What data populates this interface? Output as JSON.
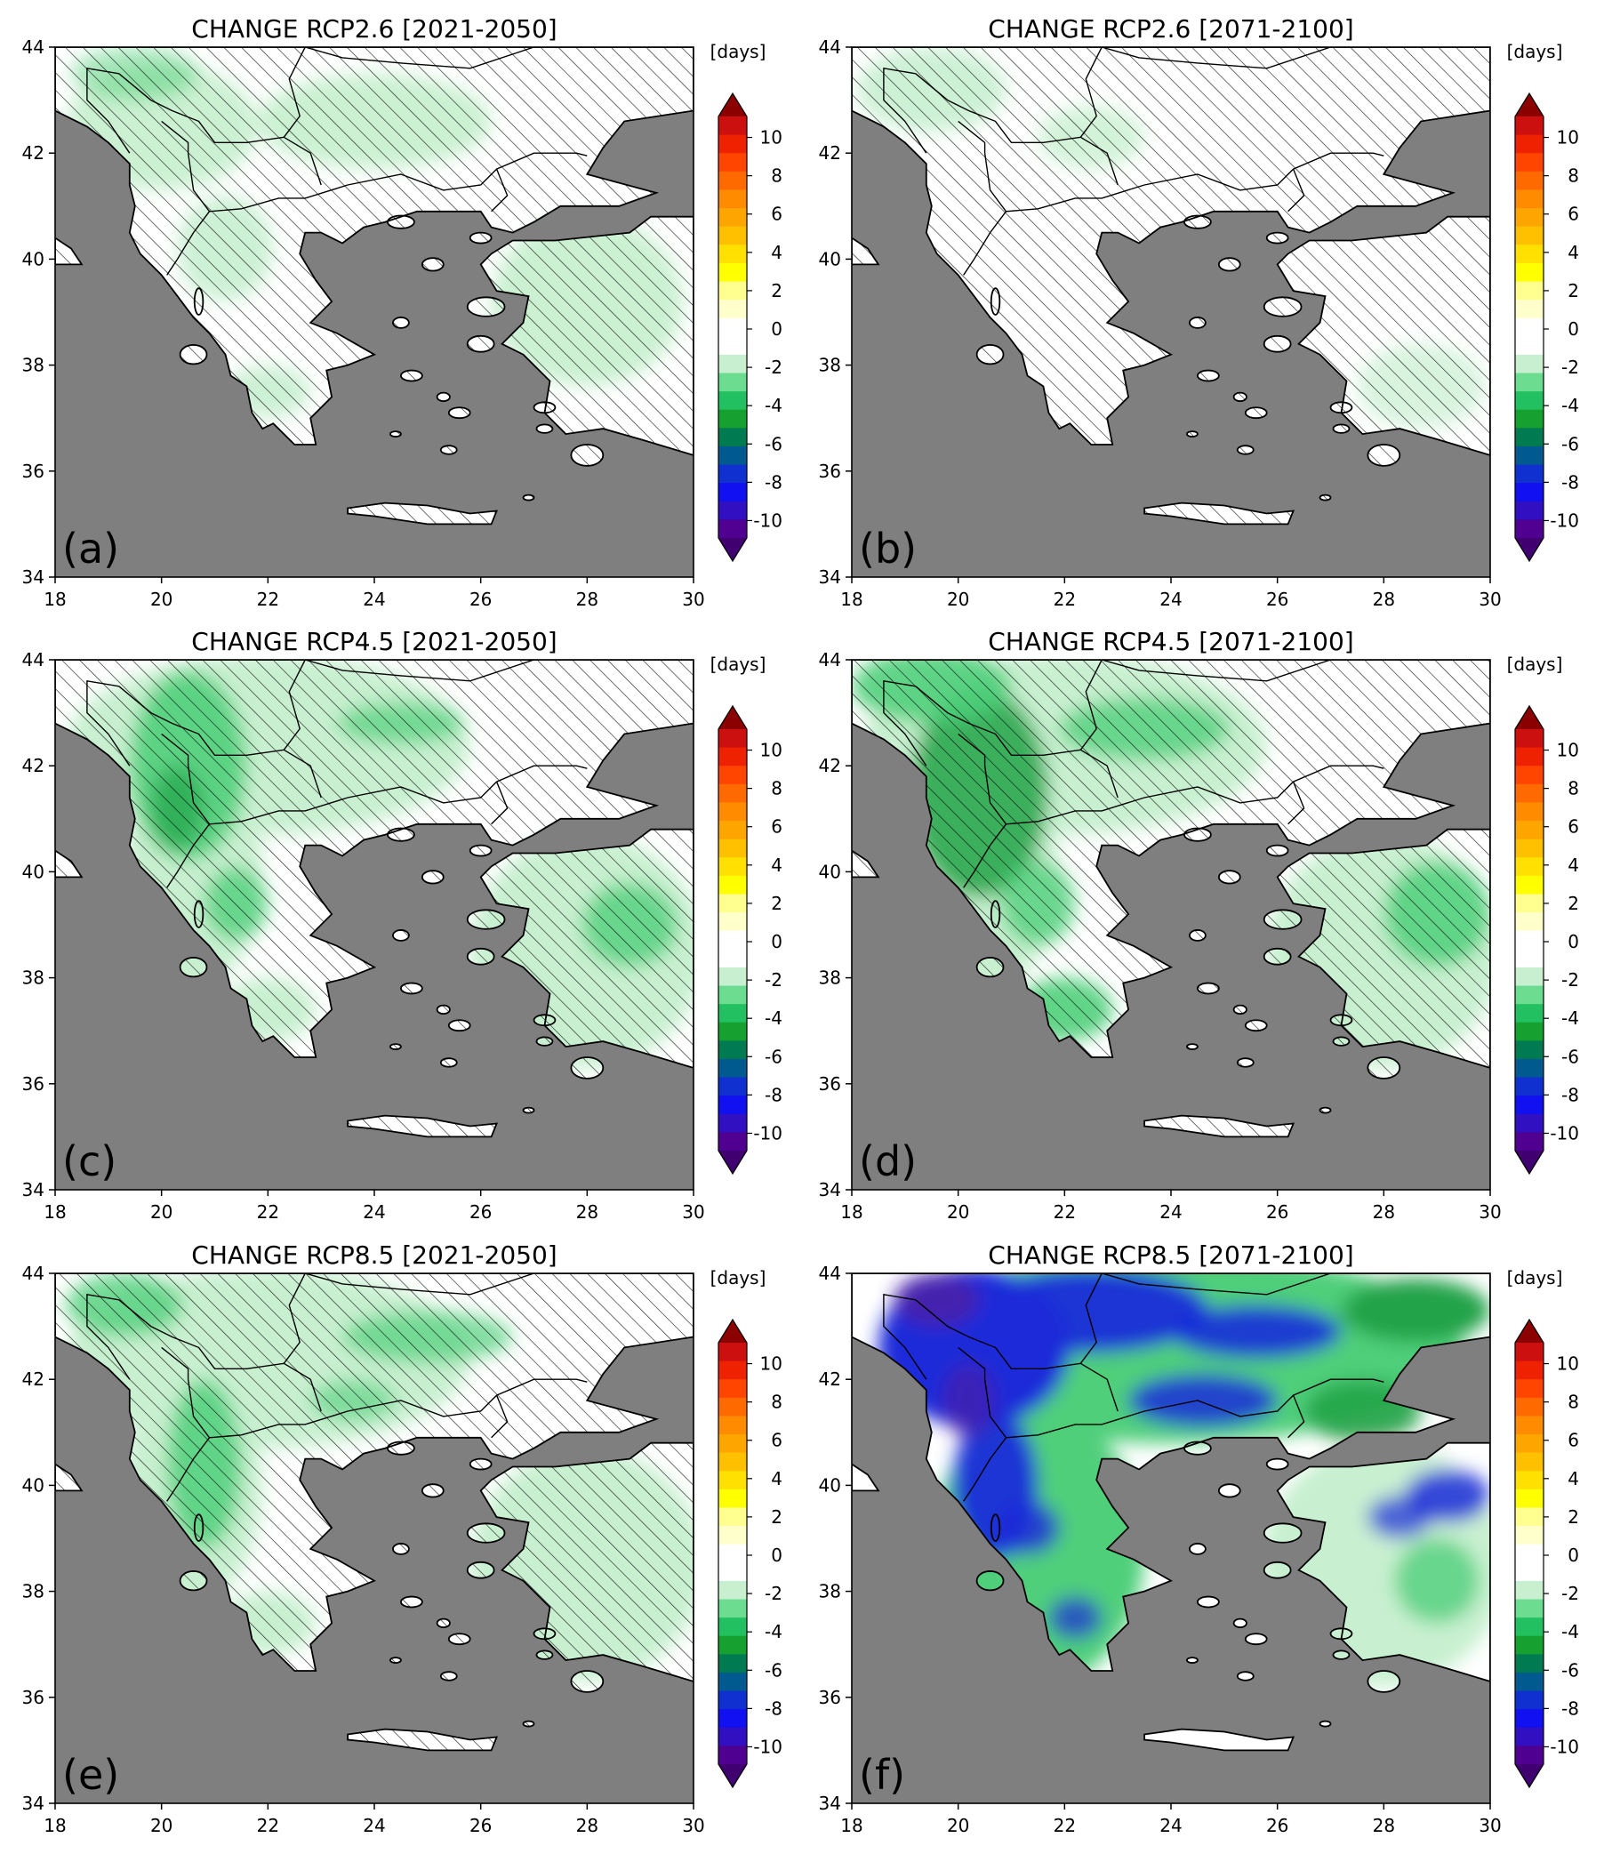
{
  "panels": [
    {
      "id": "a",
      "title": "CHANGE RCP2.6 [2021-2050]",
      "letter": "(a)",
      "scenario": "rcp26-near"
    },
    {
      "id": "b",
      "title": "CHANGE RCP2.6 [2071-2100]",
      "letter": "(b)",
      "scenario": "rcp26-far"
    },
    {
      "id": "c",
      "title": "CHANGE RCP4.5 [2021-2050]",
      "letter": "(c)",
      "scenario": "rcp45-near"
    },
    {
      "id": "d",
      "title": "CHANGE RCP4.5 [2071-2100]",
      "letter": "(d)",
      "scenario": "rcp45-far"
    },
    {
      "id": "e",
      "title": "CHANGE RCP8.5 [2021-2050]",
      "letter": "(e)",
      "scenario": "rcp85-near"
    },
    {
      "id": "f",
      "title": "CHANGE RCP8.5 [2071-2100]",
      "letter": "(f)",
      "scenario": "rcp85-far"
    }
  ],
  "axes": {
    "lon_ticks": [
      "18",
      "20",
      "22",
      "24",
      "26",
      "28",
      "30"
    ],
    "lat_ticks": [
      "44",
      "42",
      "40",
      "38",
      "36",
      "34"
    ],
    "lon_range": [
      18,
      30
    ],
    "lat_range": [
      34,
      44
    ]
  },
  "colorbar": {
    "unit": "[days]",
    "tick_labels": [
      "10",
      "8",
      "6",
      "4",
      "2",
      "0",
      "-2",
      "-4",
      "-6",
      "-8",
      "-10"
    ],
    "range": [
      -10,
      10
    ],
    "colors": [
      "#8B0000",
      "#CC1010",
      "#EE2200",
      "#FF4500",
      "#FF6A00",
      "#FF8C00",
      "#FFA500",
      "#FFC000",
      "#FFE000",
      "#FFFF00",
      "#FFFF90",
      "#FFFFCC",
      "#FFFFFF",
      "#FFFFFF",
      "#C8F0D0",
      "#6CDC90",
      "#22C060",
      "#16A030",
      "#007A50",
      "#005A90",
      "#1030D0",
      "#1010F0",
      "#3010C0",
      "#500090",
      "#400070"
    ]
  },
  "colors": {
    "sea": "#7f7f7f",
    "land_base": "#ffffff",
    "light_green": "#c8f0d0",
    "mid_green": "#4fcf7a",
    "dark_green": "#22a348",
    "blue": "#1a2bd9",
    "violet": "#4a1fa8"
  }
}
